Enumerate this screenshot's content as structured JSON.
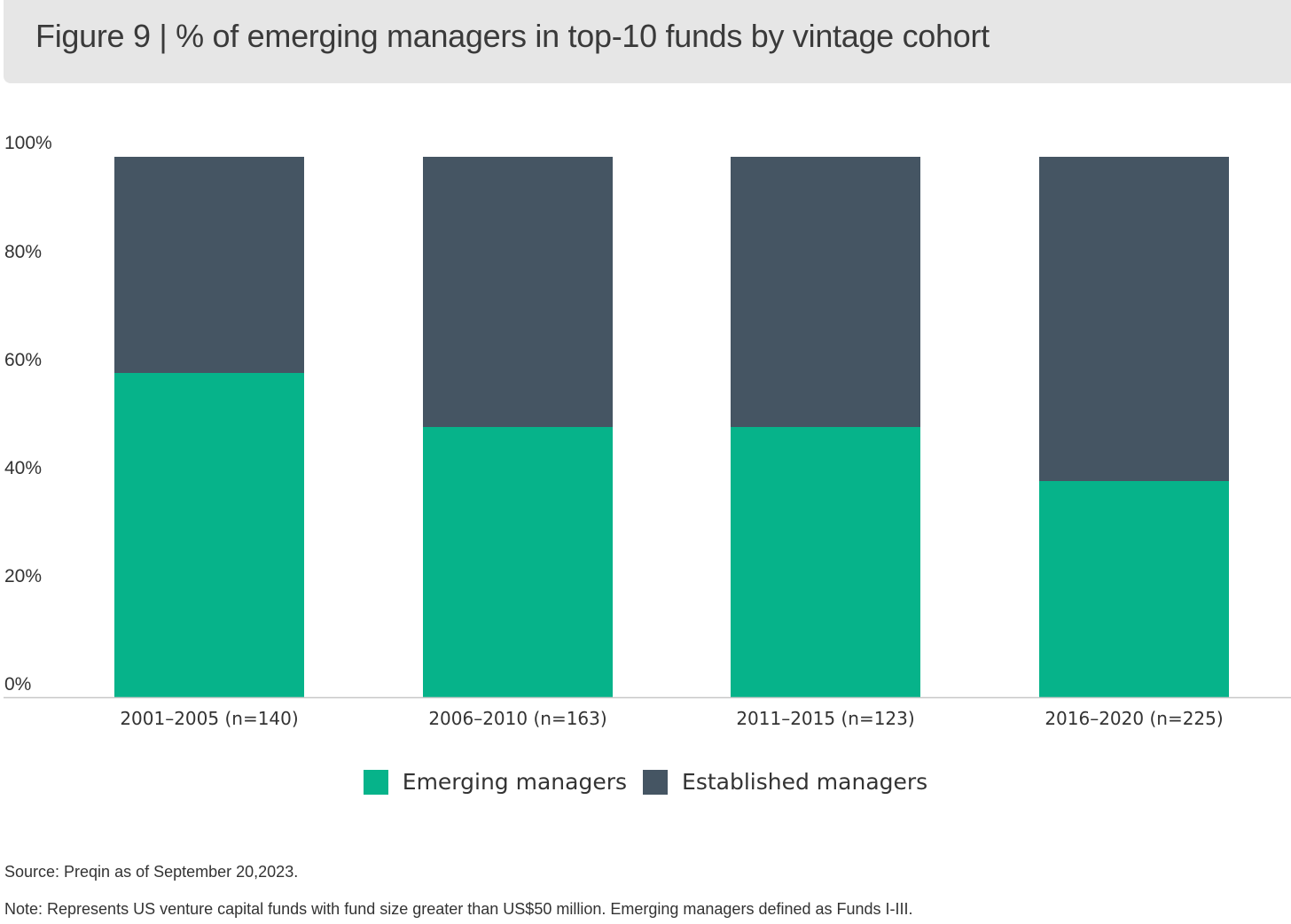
{
  "title": "Figure 9 | % of emerging managers in top-10 funds by vintage cohort",
  "colors": {
    "emerging": "#06b38a",
    "established": "#455563",
    "axis": "#c8c8c8",
    "title_band": "#e6e6e6"
  },
  "chart_data": {
    "type": "bar",
    "stacked": true,
    "categories": [
      "2001–2005 (n=140)",
      "2006–2010 (n=163)",
      "2011–2015 (n=123)",
      "2016–2020 (n=225)"
    ],
    "series": [
      {
        "name": "Emerging managers",
        "values": [
          60,
          50,
          50,
          40
        ]
      },
      {
        "name": "Established managers",
        "values": [
          40,
          50,
          50,
          60
        ]
      }
    ],
    "ylim": [
      0,
      100
    ],
    "yticks": [
      "0%",
      "20%",
      "40%",
      "60%",
      "80%",
      "100%"
    ],
    "grid": false,
    "legend_position": "bottom"
  },
  "legend": {
    "items": [
      {
        "label": "Emerging managers",
        "color": "#06b38a"
      },
      {
        "label": "Established managers",
        "color": "#455563"
      }
    ]
  },
  "footnotes": {
    "source": "Source: Preqin as of September 20,2023.",
    "note": "Note: Represents US venture capital funds with fund size greater than US$50 million. Emerging managers defined as Funds I-III."
  }
}
